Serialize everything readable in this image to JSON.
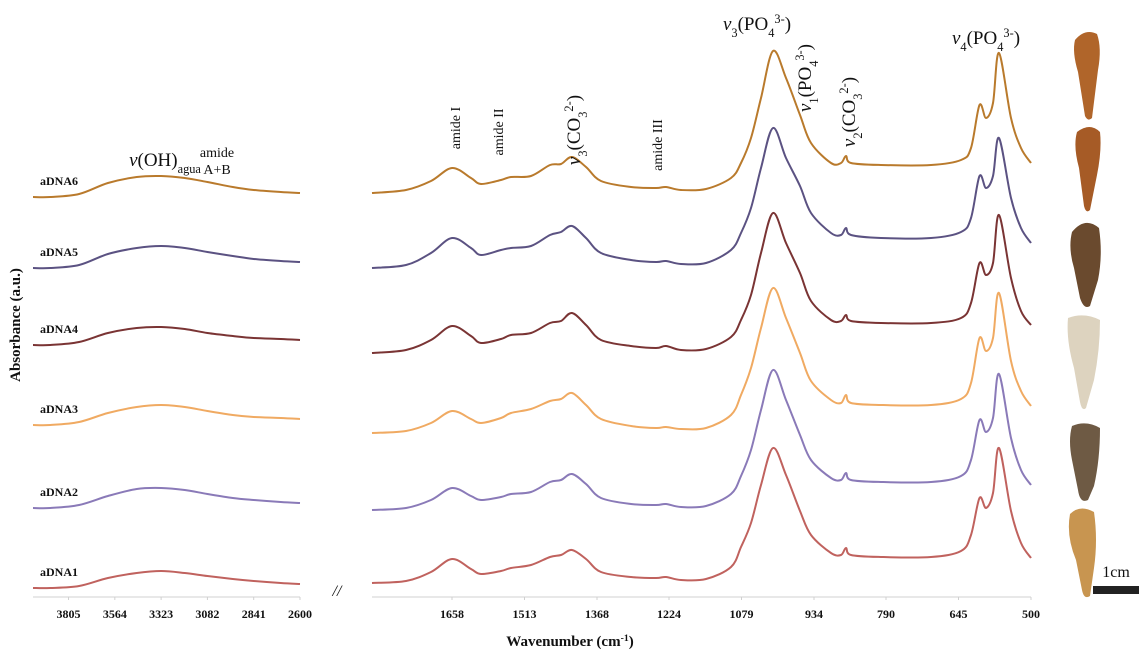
{
  "chart_data": [
    {
      "type": "line",
      "xlabel": {
        "group": "Wavenumber (cm",
        "charge": "-1",
        "close": ")"
      },
      "ylabel": "Absorbance (a.u.)",
      "x": [
        3990,
        3900,
        3750,
        3600,
        3450,
        3323,
        3200,
        3082,
        2950,
        2841,
        2700,
        2600
      ],
      "xlim": [
        3990,
        2600
      ],
      "xticks": [
        3805,
        3564,
        3323,
        3082,
        2841,
        2600
      ],
      "series": [
        {
          "name": "aDNA1",
          "color": "#c0625e",
          "values": [
            0,
            0,
            0.02,
            0.1,
            0.15,
            0.17,
            0.15,
            0.12,
            0.09,
            0.07,
            0.05,
            0.04
          ]
        },
        {
          "name": "aDNA2",
          "color": "#8a7ab8",
          "values": [
            0,
            0,
            0.03,
            0.12,
            0.19,
            0.2,
            0.18,
            0.14,
            0.1,
            0.08,
            0.06,
            0.05
          ]
        },
        {
          "name": "aDNA3",
          "color": "#f0aa62",
          "values": [
            0,
            0,
            0.03,
            0.12,
            0.18,
            0.2,
            0.18,
            0.14,
            0.1,
            0.08,
            0.07,
            0.06
          ]
        },
        {
          "name": "aDNA4",
          "color": "#7a3434",
          "values": [
            0,
            0,
            0.03,
            0.12,
            0.17,
            0.18,
            0.16,
            0.12,
            0.09,
            0.07,
            0.06,
            0.05
          ]
        },
        {
          "name": "aDNA5",
          "color": "#5b5282",
          "values": [
            0,
            0,
            0.03,
            0.14,
            0.2,
            0.22,
            0.2,
            0.16,
            0.12,
            0.09,
            0.07,
            0.06
          ]
        },
        {
          "name": "aDNA6",
          "color": "#b97a2c",
          "values": [
            0,
            0,
            0.03,
            0.14,
            0.2,
            0.21,
            0.19,
            0.15,
            0.1,
            0.07,
            0.05,
            0.04
          ]
        }
      ],
      "annotations": [
        {
          "symbol": "ν",
          "group": "(OH)",
          "sub": "agua"
        },
        {
          "lines": [
            "amide",
            "A+B"
          ]
        }
      ],
      "axis_break": "//"
    },
    {
      "type": "line",
      "x": [
        1818,
        1750,
        1700,
        1658,
        1620,
        1600,
        1560,
        1540,
        1500,
        1462,
        1440,
        1418,
        1390,
        1360,
        1300,
        1250,
        1230,
        1200,
        1150,
        1100,
        1080,
        1060,
        1040,
        1016,
        990,
        962,
        940,
        900,
        880,
        870,
        860,
        800,
        700,
        640,
        620,
        603,
        590,
        576,
        564,
        540,
        520,
        500
      ],
      "xlim": [
        1818,
        500
      ],
      "xticks": [
        1658,
        1513,
        1368,
        1224,
        1079,
        934,
        790,
        645,
        500
      ],
      "series": [
        {
          "color": "#c0625e",
          "values": [
            0,
            0.02,
            0.11,
            0.24,
            0.14,
            0.09,
            0.12,
            0.15,
            0.18,
            0.26,
            0.28,
            0.33,
            0.24,
            0.11,
            0.06,
            0.05,
            0.06,
            0.03,
            0.04,
            0.16,
            0.36,
            0.6,
            0.98,
            1.35,
            1.08,
            0.72,
            0.48,
            0.3,
            0.28,
            0.35,
            0.28,
            0.26,
            0.26,
            0.32,
            0.48,
            0.85,
            0.75,
            0.9,
            1.35,
            0.72,
            0.4,
            0.25
          ]
        },
        {
          "color": "#8a7ab8",
          "values": [
            0,
            0.02,
            0.1,
            0.22,
            0.14,
            0.1,
            0.13,
            0.16,
            0.18,
            0.28,
            0.3,
            0.36,
            0.26,
            0.12,
            0.06,
            0.05,
            0.06,
            0.03,
            0.04,
            0.16,
            0.34,
            0.6,
            1.0,
            1.4,
            1.1,
            0.75,
            0.5,
            0.32,
            0.3,
            0.37,
            0.3,
            0.28,
            0.28,
            0.34,
            0.5,
            0.9,
            0.78,
            0.92,
            1.36,
            0.72,
            0.4,
            0.25
          ]
        },
        {
          "color": "#f0aa62",
          "values": [
            0,
            0.02,
            0.1,
            0.22,
            0.14,
            0.1,
            0.15,
            0.2,
            0.24,
            0.32,
            0.34,
            0.4,
            0.28,
            0.14,
            0.07,
            0.05,
            0.06,
            0.04,
            0.05,
            0.18,
            0.38,
            0.65,
            1.05,
            1.45,
            1.15,
            0.8,
            0.52,
            0.33,
            0.3,
            0.38,
            0.3,
            0.28,
            0.28,
            0.34,
            0.5,
            0.95,
            0.82,
            0.95,
            1.4,
            0.72,
            0.42,
            0.27
          ]
        },
        {
          "color": "#7a3434",
          "values": [
            0,
            0.03,
            0.13,
            0.27,
            0.17,
            0.1,
            0.14,
            0.18,
            0.2,
            0.3,
            0.32,
            0.4,
            0.28,
            0.13,
            0.07,
            0.05,
            0.07,
            0.03,
            0.04,
            0.16,
            0.33,
            0.58,
            1.0,
            1.4,
            1.1,
            0.8,
            0.52,
            0.33,
            0.32,
            0.38,
            0.32,
            0.3,
            0.3,
            0.35,
            0.5,
            0.9,
            0.78,
            0.9,
            1.38,
            0.75,
            0.42,
            0.28
          ]
        },
        {
          "color": "#5b5282",
          "values": [
            0,
            0.03,
            0.15,
            0.3,
            0.2,
            0.13,
            0.18,
            0.2,
            0.22,
            0.33,
            0.36,
            0.42,
            0.3,
            0.15,
            0.08,
            0.06,
            0.07,
            0.04,
            0.05,
            0.18,
            0.35,
            0.6,
            1.0,
            1.4,
            1.1,
            0.82,
            0.55,
            0.35,
            0.33,
            0.4,
            0.33,
            0.3,
            0.3,
            0.36,
            0.5,
            0.92,
            0.8,
            0.92,
            1.3,
            0.7,
            0.4,
            0.25
          ]
        },
        {
          "color": "#b97a2c",
          "values": [
            0,
            0.03,
            0.12,
            0.25,
            0.15,
            0.09,
            0.13,
            0.16,
            0.17,
            0.28,
            0.29,
            0.36,
            0.26,
            0.12,
            0.06,
            0.05,
            0.06,
            0.03,
            0.04,
            0.15,
            0.3,
            0.55,
            0.95,
            1.42,
            1.15,
            0.78,
            0.5,
            0.3,
            0.3,
            0.37,
            0.3,
            0.28,
            0.28,
            0.33,
            0.45,
            0.88,
            0.75,
            0.9,
            1.4,
            0.75,
            0.45,
            0.3
          ]
        }
      ],
      "annotations": [
        {
          "text": "amide I"
        },
        {
          "text": "amide II"
        },
        {
          "symbol": "ν",
          "index": "3",
          "group": "(CO",
          "sub": "3",
          "charge": "2-",
          "close": ")"
        },
        {
          "text": "amide III"
        },
        {
          "symbol": "ν",
          "index": "3",
          "group": "(PO",
          "sub": "4",
          "charge": "3-",
          "close": ")"
        },
        {
          "symbol": "ν",
          "index": "1",
          "group": "(PO",
          "sub": "4",
          "charge": "3-",
          "close": ")"
        },
        {
          "symbol": "ν",
          "index": "2",
          "group": "(CO",
          "sub": "3",
          "charge": "2-",
          "close": ")"
        },
        {
          "symbol": "ν",
          "index": "4",
          "group": "(PO",
          "sub": "4",
          "charge": "3-",
          "close": ")"
        }
      ],
      "scale_bar": "1cm"
    }
  ]
}
